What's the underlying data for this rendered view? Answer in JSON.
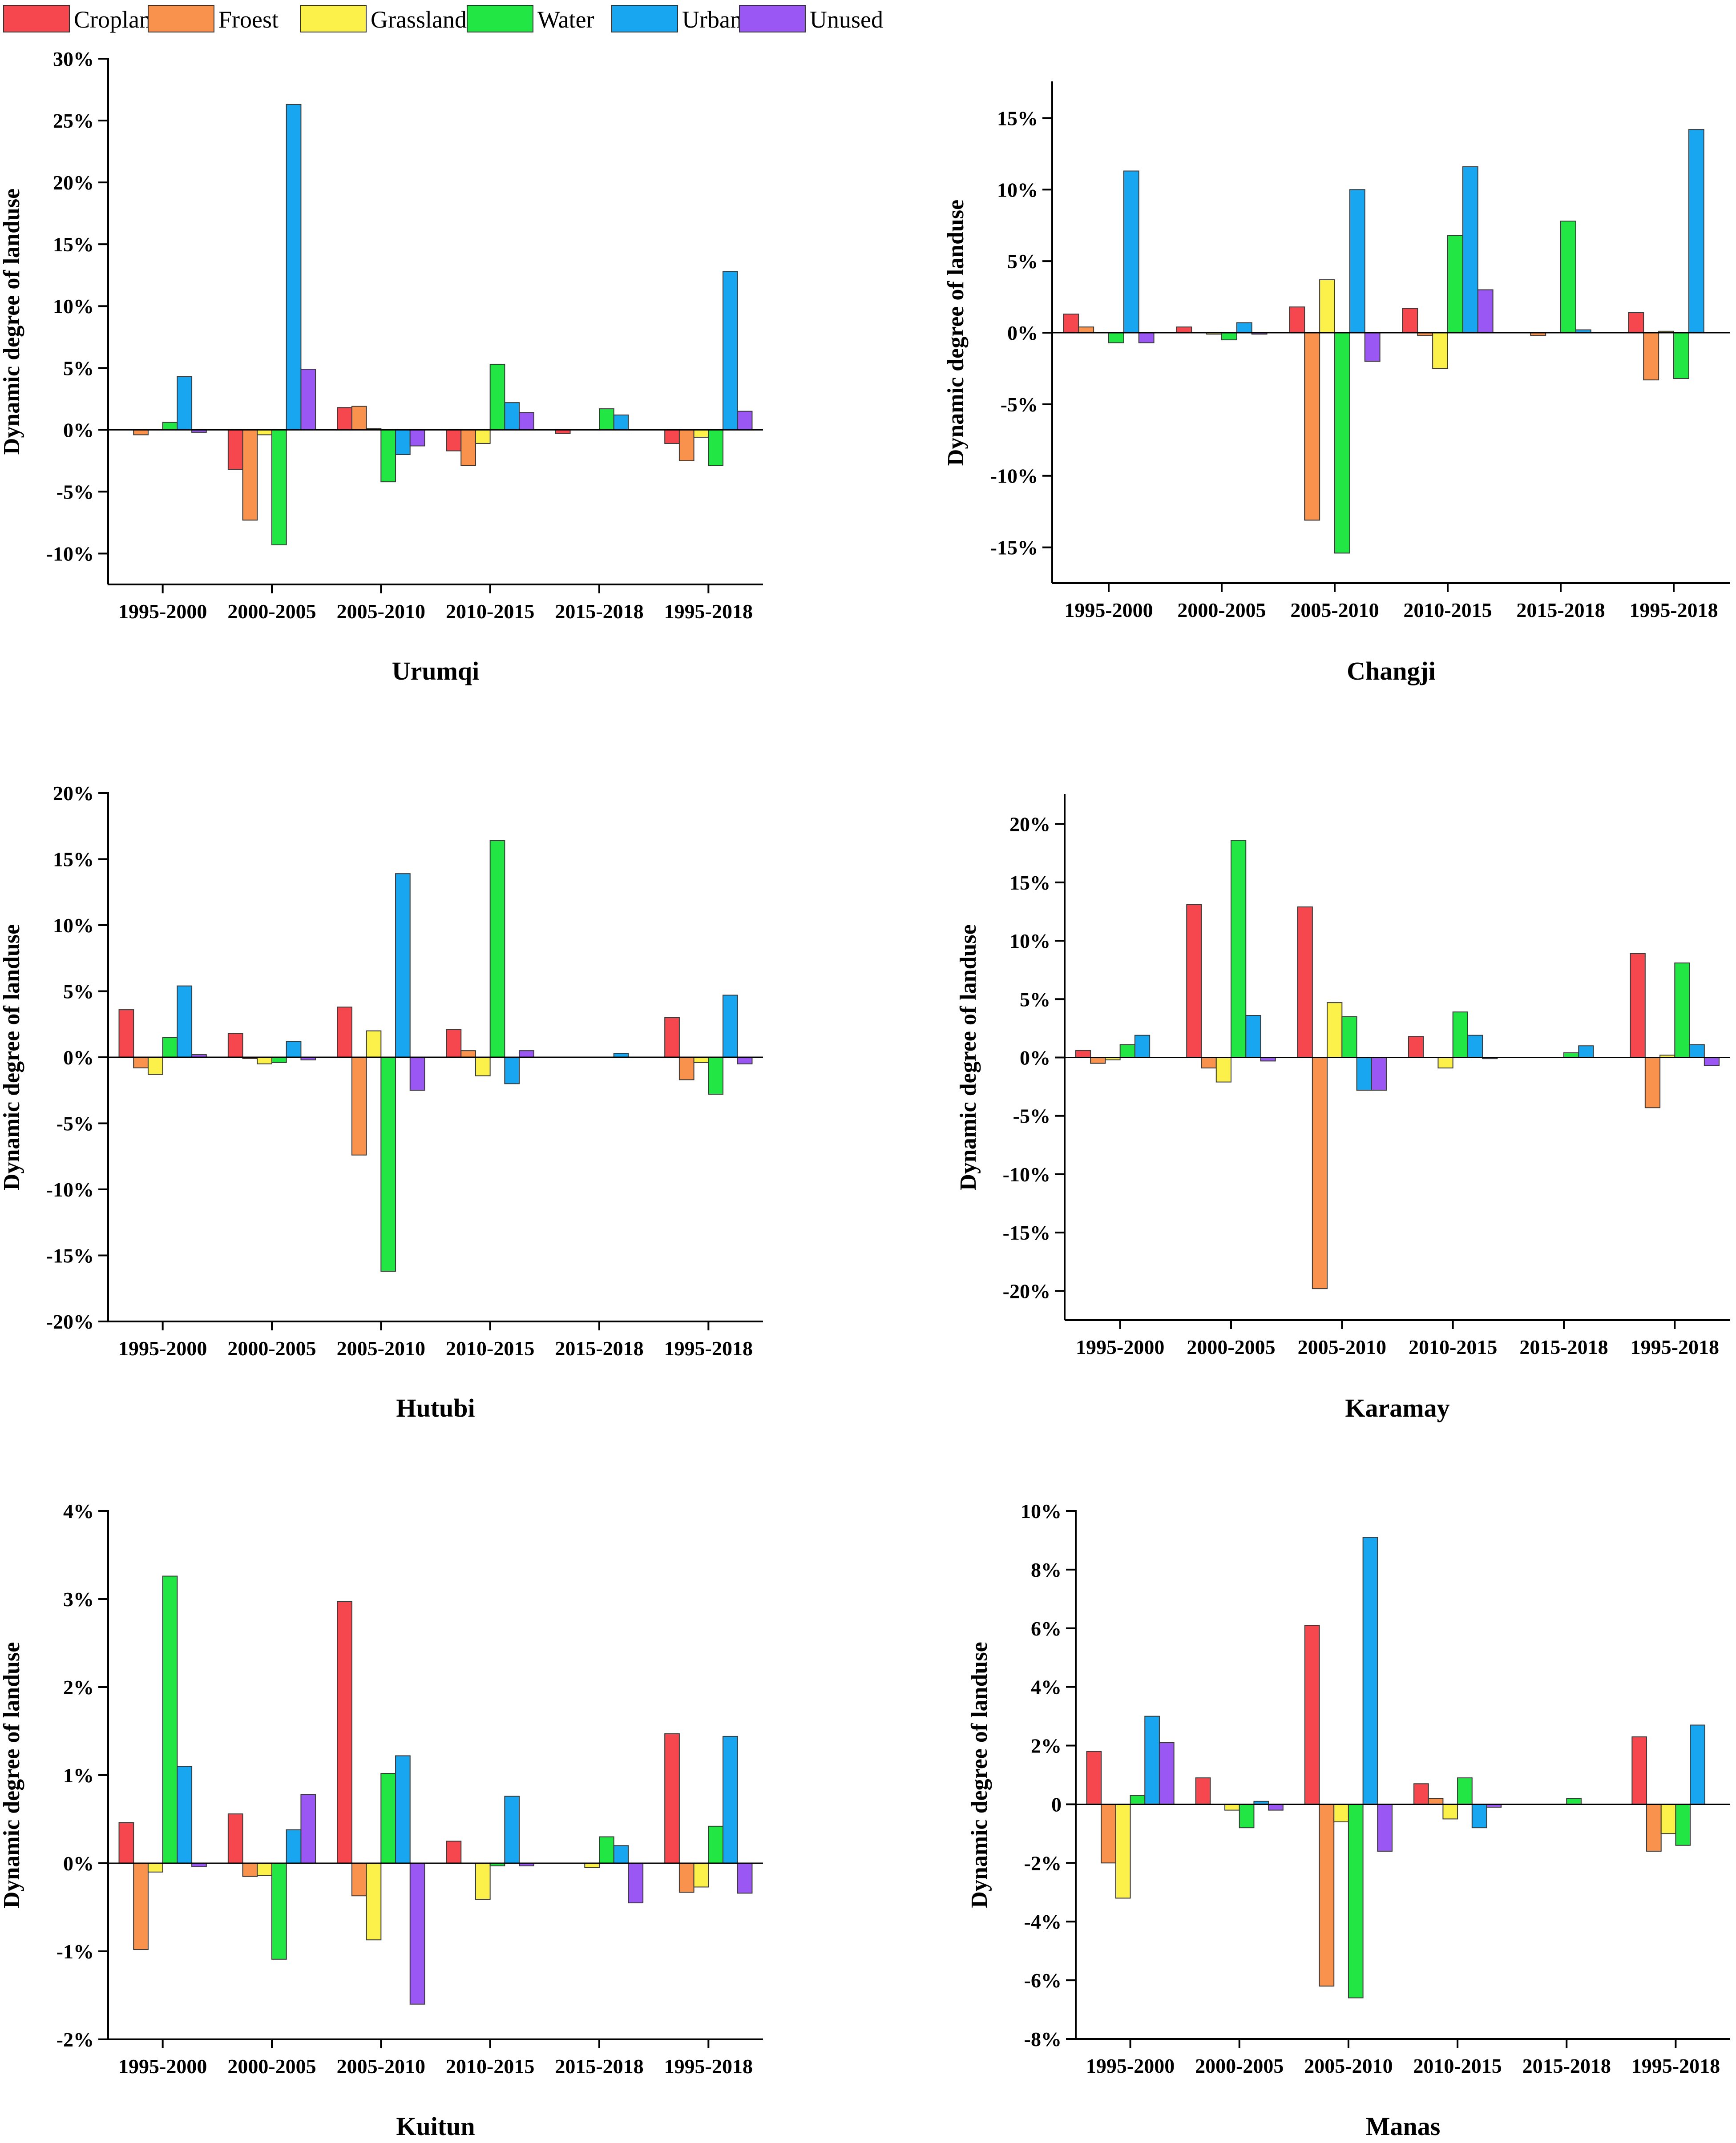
{
  "legend": [
    {
      "name": "Cropland",
      "color": "#f5474d"
    },
    {
      "name": "Froest",
      "color": "#f9924c"
    },
    {
      "name": "Grassland",
      "color": "#fbf14a"
    },
    {
      "name": "Water",
      "color": "#22e644"
    },
    {
      "name": "Urban",
      "color": "#19a6f0"
    },
    {
      "name": "Unused",
      "color": "#9b57f3"
    }
  ],
  "chart_data": [
    {
      "type": "bar",
      "title": "Urumqi",
      "ylabel": "Dynamic degree of landuse",
      "ylim": [
        -12.5,
        30
      ],
      "yticks": [
        -10,
        -5,
        0,
        5,
        10,
        15,
        20,
        25,
        30
      ],
      "tick_labels": [
        "-10%",
        "-5%",
        "0%",
        "5%",
        "10%",
        "15%",
        "20%",
        "25%",
        "30%"
      ],
      "categories": [
        "1995-2000",
        "2000-2005",
        "2005-2010",
        "2010-2015",
        "2015-2018",
        "1995-2018"
      ],
      "series": [
        {
          "name": "Cropland",
          "values": [
            0,
            -3.2,
            1.8,
            -1.7,
            -0.3,
            -1.1
          ]
        },
        {
          "name": "Froest",
          "values": [
            -0.4,
            -7.3,
            1.9,
            -2.9,
            0,
            -2.5
          ]
        },
        {
          "name": "Grassland",
          "values": [
            0,
            -0.4,
            0.1,
            -1.1,
            0,
            -0.6
          ]
        },
        {
          "name": "Water",
          "values": [
            0.6,
            -9.3,
            -4.2,
            5.3,
            1.7,
            -2.9
          ]
        },
        {
          "name": "Urban",
          "values": [
            4.3,
            26.3,
            -2.0,
            2.2,
            1.2,
            12.8
          ]
        },
        {
          "name": "Unused",
          "values": [
            -0.2,
            4.9,
            -1.3,
            1.4,
            0,
            1.5
          ]
        }
      ]
    },
    {
      "type": "bar",
      "title": "Changji",
      "ylabel": "Dynamic degree of landuse",
      "ylim": [
        -17.5,
        17.5
      ],
      "yticks": [
        -15,
        -10,
        -5,
        0,
        5,
        10,
        15
      ],
      "tick_labels": [
        "-15%",
        "-10%",
        "-5%",
        "0%",
        "5%",
        "10%",
        "15%"
      ],
      "categories": [
        "1995-2000",
        "2000-2005",
        "2005-2010",
        "2010-2015",
        "2015-2018",
        "1995-2018"
      ],
      "series": [
        {
          "name": "Cropland",
          "values": [
            1.3,
            0.4,
            1.8,
            1.7,
            0,
            1.4
          ]
        },
        {
          "name": "Froest",
          "values": [
            0.4,
            0,
            -13.1,
            -0.2,
            -0.2,
            -3.3
          ]
        },
        {
          "name": "Grassland",
          "values": [
            0,
            -0.1,
            3.7,
            -2.5,
            0,
            0.1
          ]
        },
        {
          "name": "Water",
          "values": [
            -0.7,
            -0.5,
            -15.4,
            6.8,
            7.8,
            -3.2
          ]
        },
        {
          "name": "Urban",
          "values": [
            11.3,
            0.7,
            10.0,
            11.6,
            0.2,
            14.2
          ]
        },
        {
          "name": "Unused",
          "values": [
            -0.7,
            -0.1,
            -2.0,
            3.0,
            0,
            0
          ]
        }
      ]
    },
    {
      "type": "bar",
      "title": "Hutubi",
      "ylabel": "Dynamic degree of landuse",
      "ylim": [
        -20,
        20
      ],
      "yticks": [
        -20,
        -15,
        -10,
        -5,
        0,
        5,
        10,
        15,
        20
      ],
      "tick_labels": [
        "-20%",
        "-15%",
        "-10%",
        "-5%",
        "0%",
        "5%",
        "10%",
        "15%",
        "20%"
      ],
      "categories": [
        "1995-2000",
        "2000-2005",
        "2005-2010",
        "2010-2015",
        "2015-2018",
        "1995-2018"
      ],
      "series": [
        {
          "name": "Cropland",
          "values": [
            3.6,
            1.8,
            3.8,
            2.1,
            0,
            3.0
          ]
        },
        {
          "name": "Froest",
          "values": [
            -0.8,
            -0.1,
            -7.4,
            0.5,
            0,
            -1.7
          ]
        },
        {
          "name": "Grassland",
          "values": [
            -1.3,
            -0.5,
            2.0,
            -1.4,
            0,
            -0.4
          ]
        },
        {
          "name": "Water",
          "values": [
            1.5,
            -0.4,
            -16.2,
            16.4,
            0,
            -2.8
          ]
        },
        {
          "name": "Urban",
          "values": [
            5.4,
            1.2,
            13.9,
            -2.0,
            0.3,
            4.7
          ]
        },
        {
          "name": "Unused",
          "values": [
            0.2,
            -0.2,
            -2.5,
            0.5,
            0,
            -0.5
          ]
        }
      ]
    },
    {
      "type": "bar",
      "title": "Karamay",
      "ylabel": "Dynamic degree of landuse",
      "ylim": [
        -22.5,
        22.5
      ],
      "yticks": [
        -20,
        -15,
        -10,
        -5,
        0,
        5,
        10,
        15,
        20
      ],
      "tick_labels": [
        "-20%",
        "-15%",
        "-10%",
        "-5%",
        "0%",
        "5%",
        "10%",
        "15%",
        "20%"
      ],
      "categories": [
        "1995-2000",
        "2000-2005",
        "2005-2010",
        "2010-2015",
        "2015-2018",
        "1995-2018"
      ],
      "series": [
        {
          "name": "Cropland",
          "values": [
            0.6,
            13.1,
            12.9,
            1.8,
            0,
            8.9
          ]
        },
        {
          "name": "Froest",
          "values": [
            -0.5,
            -0.9,
            -19.8,
            0,
            0,
            -4.3
          ]
        },
        {
          "name": "Grassland",
          "values": [
            -0.2,
            -2.1,
            4.7,
            -0.9,
            0,
            0.2
          ]
        },
        {
          "name": "Water",
          "values": [
            1.1,
            18.6,
            3.5,
            3.9,
            0.4,
            8.1
          ]
        },
        {
          "name": "Urban",
          "values": [
            1.9,
            3.6,
            -2.8,
            1.9,
            1.0,
            1.1
          ]
        },
        {
          "name": "Unused",
          "values": [
            0,
            -0.3,
            -2.8,
            -0.1,
            0,
            -0.7
          ]
        }
      ]
    },
    {
      "type": "bar",
      "title": "Kuitun",
      "ylabel": "Dynamic degree of landuse",
      "ylim": [
        -2,
        4
      ],
      "yticks": [
        -2,
        -1,
        0,
        1,
        2,
        3,
        4
      ],
      "tick_labels": [
        "-2%",
        "-1%",
        "0%",
        "1%",
        "2%",
        "3%",
        "4%"
      ],
      "categories": [
        "1995-2000",
        "2000-2005",
        "2005-2010",
        "2010-2015",
        "2015-2018",
        "1995-2018"
      ],
      "series": [
        {
          "name": "Cropland",
          "values": [
            0.46,
            0.56,
            2.97,
            0.25,
            0,
            1.47
          ]
        },
        {
          "name": "Froest",
          "values": [
            -0.98,
            -0.15,
            -0.37,
            0,
            0,
            -0.33
          ]
        },
        {
          "name": "Grassland",
          "values": [
            -0.1,
            -0.14,
            -0.87,
            -0.41,
            -0.05,
            -0.27
          ]
        },
        {
          "name": "Water",
          "values": [
            3.26,
            -1.09,
            1.02,
            -0.03,
            0.3,
            0.42
          ]
        },
        {
          "name": "Urban",
          "values": [
            1.1,
            0.38,
            1.22,
            0.76,
            0.2,
            1.44
          ]
        },
        {
          "name": "Unused",
          "values": [
            -0.04,
            0.78,
            -1.6,
            -0.03,
            -0.45,
            -0.34
          ]
        }
      ]
    },
    {
      "type": "bar",
      "title": "Manas",
      "ylabel": "Dynamic degree of landuse",
      "ylim": [
        -8,
        10
      ],
      "yticks": [
        -8,
        -6,
        -4,
        -2,
        0,
        2,
        4,
        6,
        8,
        10
      ],
      "tick_labels": [
        "-8%",
        "-6%",
        "-4%",
        "-2%",
        "0",
        "2%",
        "4%",
        "6%",
        "8%",
        "10%"
      ],
      "categories": [
        "1995-2000",
        "2000-2005",
        "2005-2010",
        "2010-2015",
        "2015-2018",
        "1995-2018"
      ],
      "series": [
        {
          "name": "Cropland",
          "values": [
            1.8,
            0.9,
            6.1,
            0.7,
            0,
            2.3
          ]
        },
        {
          "name": "Froest",
          "values": [
            -2.0,
            0,
            -6.2,
            0.2,
            0,
            -1.6
          ]
        },
        {
          "name": "Grassland",
          "values": [
            -3.2,
            -0.2,
            -0.6,
            -0.5,
            0,
            -1.0
          ]
        },
        {
          "name": "Water",
          "values": [
            0.3,
            -0.8,
            -6.6,
            0.9,
            0.2,
            -1.4
          ]
        },
        {
          "name": "Urban",
          "values": [
            3.0,
            0.1,
            9.1,
            -0.8,
            0,
            2.7
          ]
        },
        {
          "name": "Unused",
          "values": [
            2.1,
            -0.2,
            -1.6,
            -0.1,
            0,
            0
          ]
        }
      ]
    }
  ]
}
